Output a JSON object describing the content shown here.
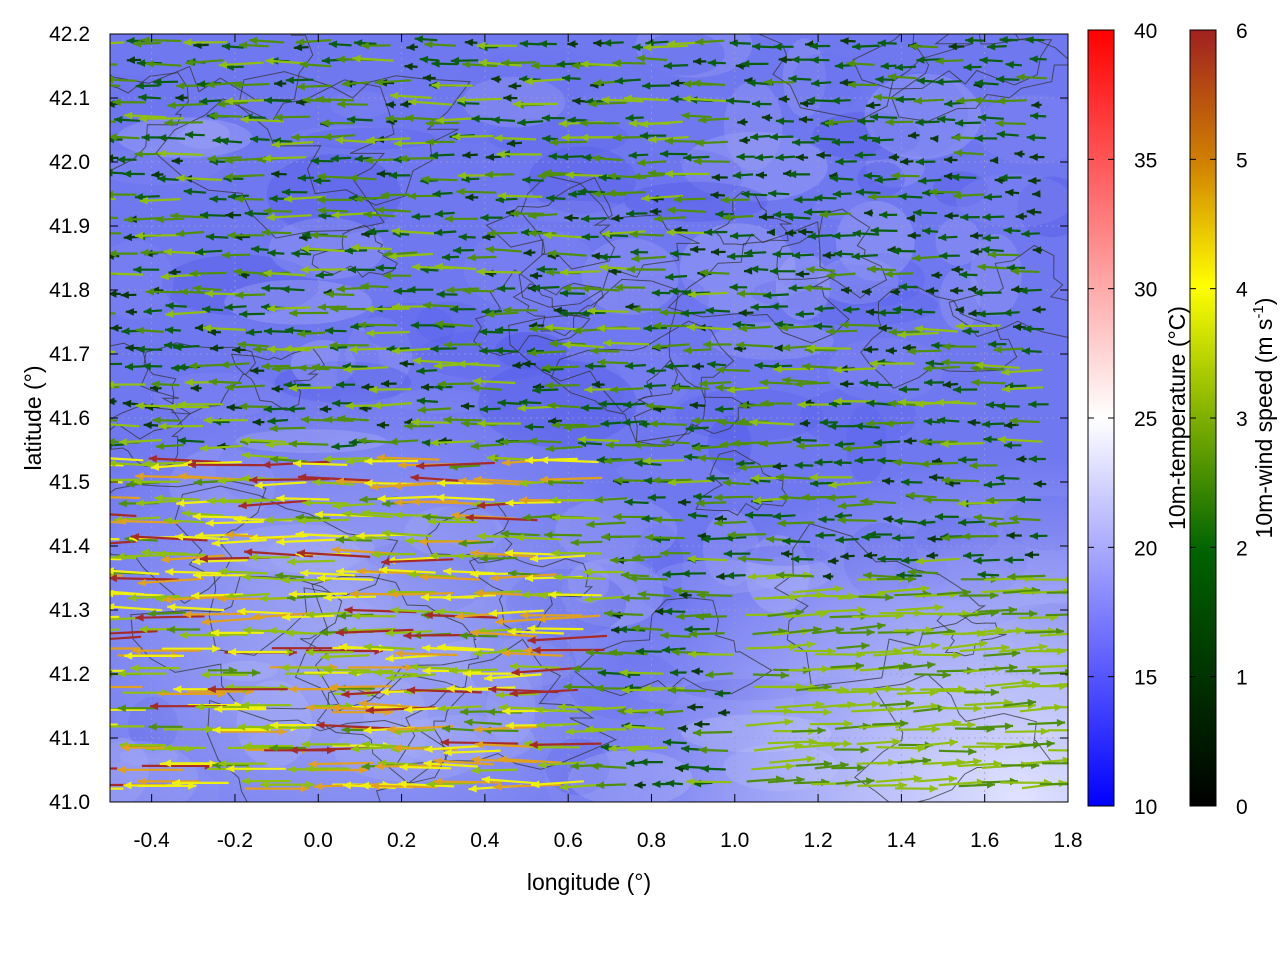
{
  "chart_data": {
    "type": "heatmap",
    "title": "",
    "xlabel": "longitude (°)",
    "ylabel": "latitude (°)",
    "xlim": [
      -0.5,
      1.8
    ],
    "ylim": [
      41.0,
      42.2
    ],
    "x_ticks": [
      -0.4,
      -0.2,
      0.0,
      0.2,
      0.4,
      0.6,
      0.8,
      1.0,
      1.2,
      1.4,
      1.6,
      1.8
    ],
    "x_tick_labels": [
      "-0.4",
      "-0.2",
      "0.0",
      "0.2",
      "0.4",
      "0.6",
      "0.8",
      "1.0",
      "1.2",
      "1.4",
      "1.6",
      "1.8"
    ],
    "y_ticks": [
      41.0,
      41.1,
      41.2,
      41.3,
      41.4,
      41.5,
      41.6,
      41.7,
      41.8,
      41.9,
      42.0,
      42.1,
      42.2
    ],
    "y_tick_labels": [
      "41.0",
      "41.1",
      "41.2",
      "41.3",
      "41.4",
      "41.5",
      "41.6",
      "41.7",
      "41.8",
      "41.9",
      "42.0",
      "42.1",
      "42.2"
    ],
    "grid": true,
    "temperature_colorbar": {
      "label": "10m-temperature (°C)",
      "range": [
        10,
        40
      ],
      "ticks": [
        10,
        15,
        20,
        25,
        30,
        35,
        40
      ],
      "tick_labels": [
        "10",
        "15",
        "20",
        "25",
        "30",
        "35",
        "40"
      ],
      "colors": [
        "#0000ff",
        "#ffffff",
        "#ff0000"
      ]
    },
    "wind_colorbar": {
      "label": "10m-wind speed (m s-1)",
      "label_main": "10m-wind speed (m s",
      "label_sup": "-1",
      "label_end": ")",
      "range": [
        0,
        6
      ],
      "ticks": [
        0,
        1,
        2,
        3,
        4,
        5,
        6
      ],
      "tick_labels": [
        "0",
        "1",
        "2",
        "3",
        "4",
        "5",
        "6"
      ],
      "colors": [
        "#000000",
        "#006400",
        "#7fb000",
        "#ffff00",
        "#d08000",
        "#a02020"
      ]
    },
    "background_temperature_range": [
      16,
      22
    ],
    "dominant_wind_direction": "westward (east-to-west) flow, eastward in southern and south-eastern areas",
    "contours": "terrain elevation contour lines (dark gray)"
  }
}
